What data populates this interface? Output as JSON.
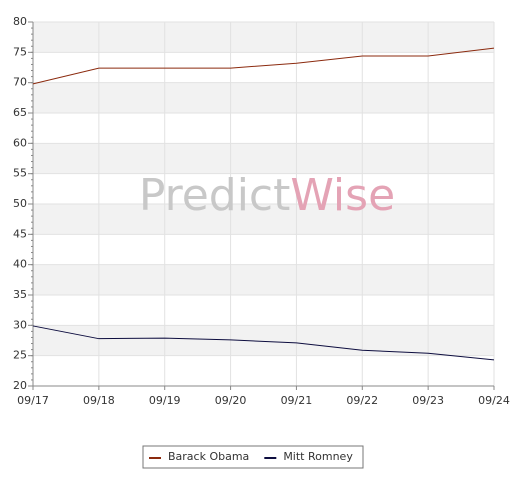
{
  "chart_data": {
    "type": "line",
    "watermark": {
      "first": "Predict",
      "second": "Wise"
    },
    "categories": [
      "09/17",
      "09/18",
      "09/19",
      "09/20",
      "09/21",
      "09/22",
      "09/23",
      "09/24"
    ],
    "series": [
      {
        "name": "Barack Obama",
        "color": "#8b2a0e",
        "values": [
          69.8,
          72.4,
          72.4,
          72.4,
          73.2,
          74.4,
          74.4,
          75.7
        ]
      },
      {
        "name": "Mitt Romney",
        "color": "#0d0d3f",
        "values": [
          29.9,
          27.8,
          27.9,
          27.6,
          27.1,
          25.9,
          25.4,
          24.3
        ]
      }
    ],
    "ylim": [
      20,
      80
    ],
    "yticks": [
      20,
      25,
      30,
      35,
      40,
      45,
      50,
      55,
      60,
      65,
      70,
      75,
      80
    ],
    "grid": true,
    "legend": "bottom"
  }
}
